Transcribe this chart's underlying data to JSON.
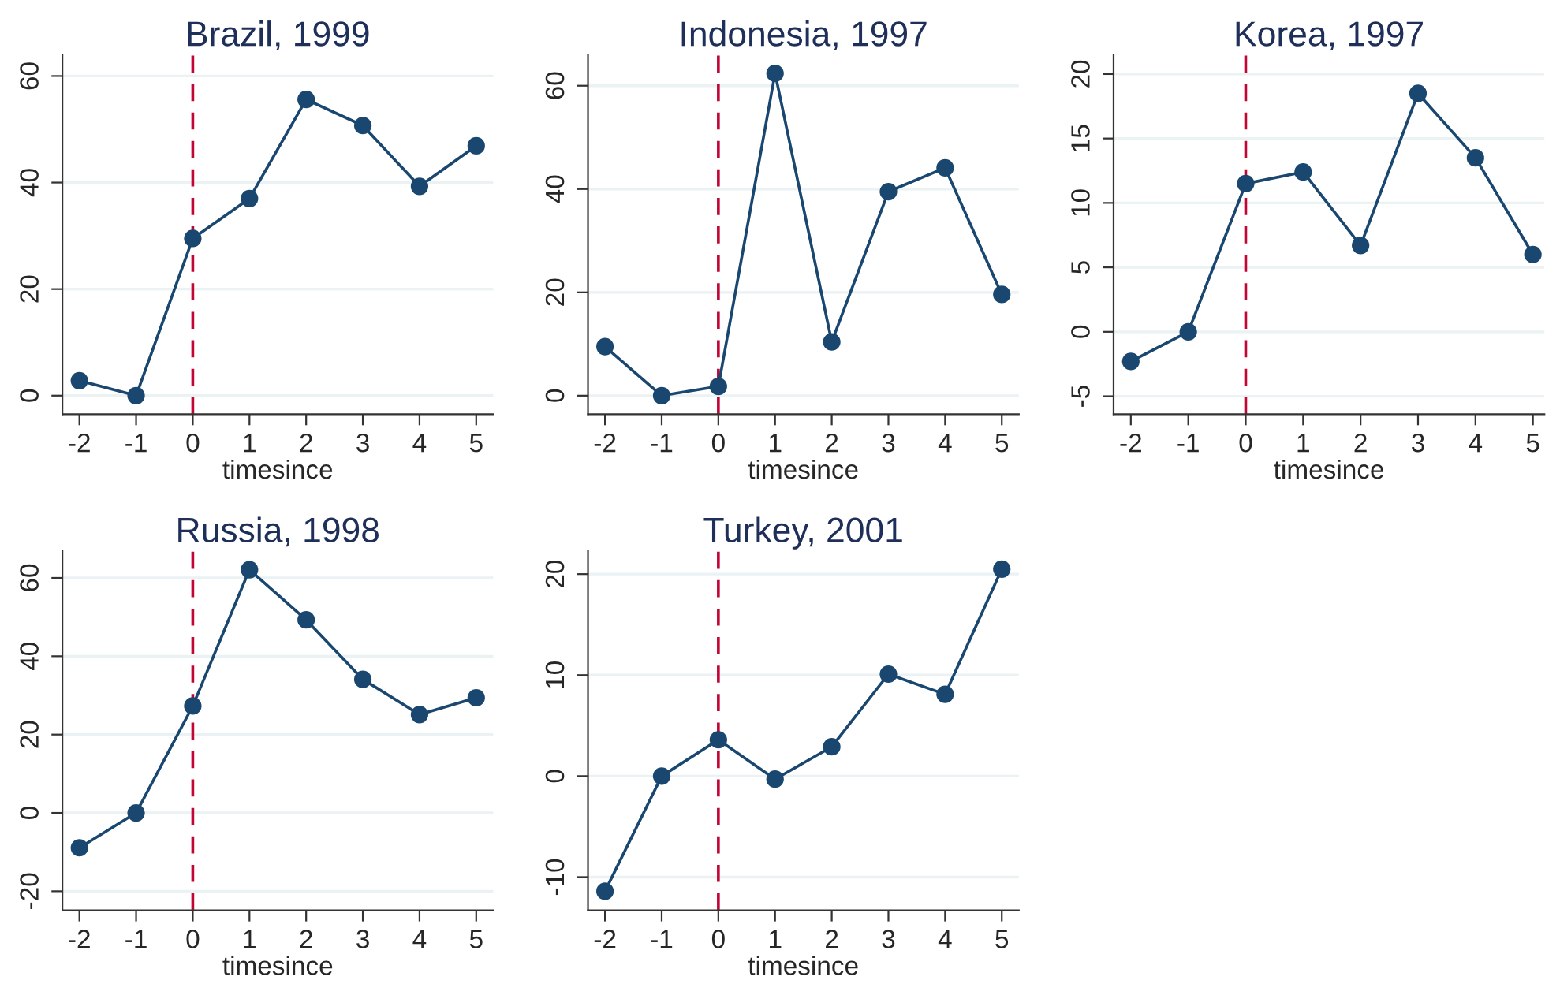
{
  "chart_data": [
    {
      "type": "line",
      "title": "Brazil, 1999",
      "xlabel": "timesince",
      "x": [
        -2,
        -1,
        0,
        1,
        2,
        3,
        4,
        5
      ],
      "series": [
        {
          "color": "#1a476f",
          "values": [
            2.8,
            0,
            29.5,
            37,
            55.6,
            50.7,
            39.3,
            46.9
          ]
        }
      ],
      "xlim": [
        -2.3,
        5.3
      ],
      "xticks": [
        -2,
        -1,
        0,
        1,
        2,
        3,
        4,
        5
      ],
      "ylim": [
        -3.5,
        64
      ],
      "yticks": [
        0,
        20,
        40,
        60
      ],
      "grid": "y",
      "marker": "circle",
      "line_style": "solid",
      "ref_lines": [
        {
          "axis": "x",
          "value": 0,
          "color": "#c10534",
          "line_style": "dashed"
        }
      ]
    },
    {
      "type": "line",
      "title": "Indonesia, 1997",
      "xlabel": "timesince",
      "x": [
        -2,
        -1,
        0,
        1,
        2,
        3,
        4,
        5
      ],
      "series": [
        {
          "color": "#1a476f",
          "values": [
            9.5,
            0,
            1.8,
            62.4,
            10.4,
            39.5,
            44.1,
            19.6
          ]
        }
      ],
      "xlim": [
        -2.3,
        5.3
      ],
      "xticks": [
        -2,
        -1,
        0,
        1,
        2,
        3,
        4,
        5
      ],
      "ylim": [
        -3.6,
        66
      ],
      "yticks": [
        0,
        20,
        40,
        60
      ],
      "grid": "y",
      "marker": "circle",
      "line_style": "solid",
      "ref_lines": [
        {
          "axis": "x",
          "value": 0,
          "color": "#c10534",
          "line_style": "dashed"
        }
      ]
    },
    {
      "type": "line",
      "title": "Korea, 1997",
      "xlabel": "timesince",
      "x": [
        -2,
        -1,
        0,
        1,
        2,
        3,
        4,
        5
      ],
      "series": [
        {
          "color": "#1a476f",
          "values": [
            -2.3,
            0,
            11.5,
            12.4,
            6.7,
            18.5,
            13.5,
            6.0
          ]
        }
      ],
      "xlim": [
        -2.3,
        5.2
      ],
      "xticks": [
        -2,
        -1,
        0,
        1,
        2,
        3,
        4,
        5
      ],
      "ylim": [
        -6.4,
        21.5
      ],
      "yticks": [
        -5,
        0,
        5,
        10,
        15,
        20
      ],
      "grid": "y",
      "marker": "circle",
      "line_style": "solid",
      "ref_lines": [
        {
          "axis": "x",
          "value": 0,
          "color": "#c10534",
          "line_style": "dashed"
        }
      ]
    },
    {
      "type": "line",
      "title": "Russia, 1998",
      "xlabel": "timesince",
      "x": [
        -2,
        -1,
        0,
        1,
        2,
        3,
        4,
        5
      ],
      "series": [
        {
          "color": "#1a476f",
          "values": [
            -8.9,
            0,
            27.3,
            62.1,
            49.3,
            34.1,
            25.1,
            29.4
          ]
        }
      ],
      "xlim": [
        -2.3,
        5.3
      ],
      "xticks": [
        -2,
        -1,
        0,
        1,
        2,
        3,
        4,
        5
      ],
      "ylim": [
        -24.9,
        66.9
      ],
      "yticks": [
        -20,
        0,
        20,
        40,
        60
      ],
      "grid": "y",
      "marker": "circle",
      "line_style": "solid",
      "ref_lines": [
        {
          "axis": "x",
          "value": 0,
          "color": "#c10534",
          "line_style": "dashed"
        }
      ]
    },
    {
      "type": "line",
      "title": "Turkey, 2001",
      "xlabel": "timesince",
      "x": [
        -2,
        -1,
        0,
        1,
        2,
        3,
        4,
        5
      ],
      "series": [
        {
          "color": "#1a476f",
          "values": [
            -11.4,
            0,
            3.6,
            -0.3,
            2.9,
            10.1,
            8.1,
            20.5
          ]
        }
      ],
      "xlim": [
        -2.3,
        5.3
      ],
      "xticks": [
        -2,
        -1,
        0,
        1,
        2,
        3,
        4,
        5
      ],
      "ylim": [
        -13.3,
        22.3
      ],
      "yticks": [
        -10,
        0,
        10,
        20
      ],
      "grid": "y",
      "marker": "circle",
      "line_style": "solid",
      "ref_lines": [
        {
          "axis": "x",
          "value": 0,
          "color": "#c10534",
          "line_style": "dashed"
        }
      ]
    }
  ]
}
